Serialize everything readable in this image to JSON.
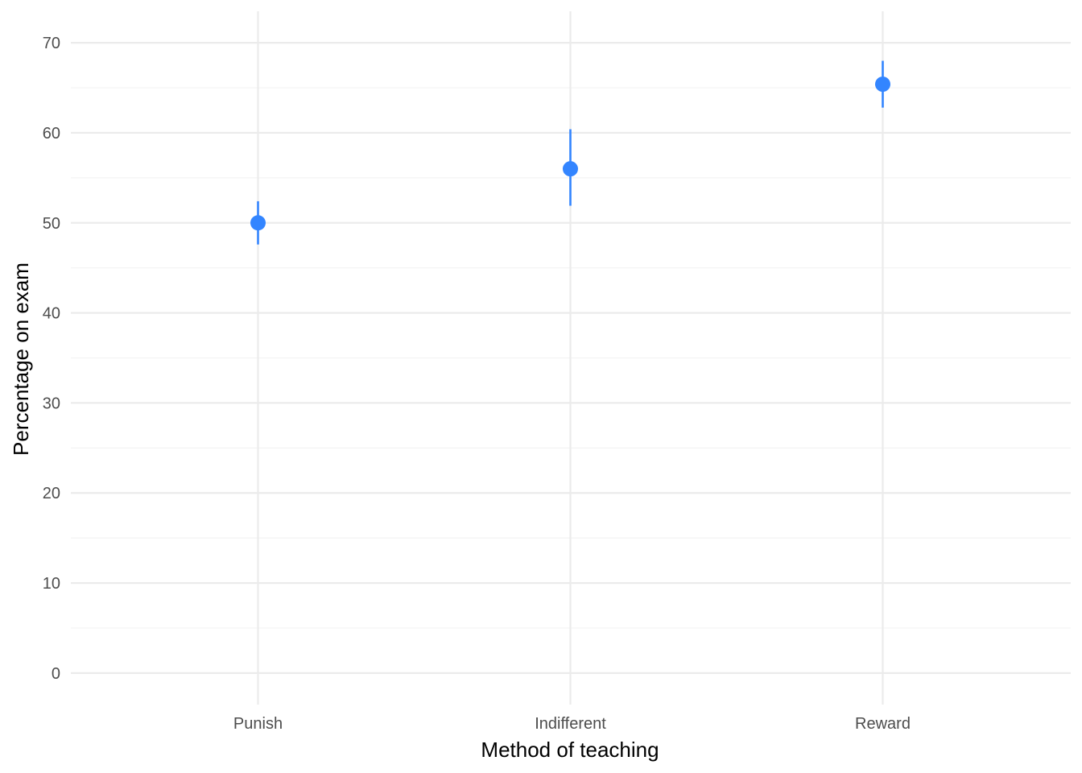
{
  "chart_data": {
    "type": "scatter",
    "subtype": "point-with-error-bars",
    "title": "",
    "xlabel": "Method of teaching",
    "ylabel": "Percentage on exam",
    "categories": [
      "Punish",
      "Indifferent",
      "Reward"
    ],
    "series": [
      {
        "values": [
          50.0,
          56.0,
          65.4
        ],
        "lower": [
          47.6,
          51.9,
          62.8
        ],
        "upper": [
          52.4,
          60.4,
          68.0
        ]
      }
    ],
    "ylim": [
      -3.5,
      73.5
    ],
    "yticks": [
      0,
      10,
      20,
      30,
      40,
      50,
      60,
      70
    ],
    "yticks_minor": [
      5,
      15,
      25,
      35,
      45,
      55,
      65
    ],
    "grid": true,
    "legend": "none",
    "colors": {
      "point": "#3385FF",
      "grid_major": "#EBEBEB",
      "grid_minor": "#F3F3F3",
      "tick_text": "#4D4D4D",
      "axis_title": "#000000"
    }
  }
}
